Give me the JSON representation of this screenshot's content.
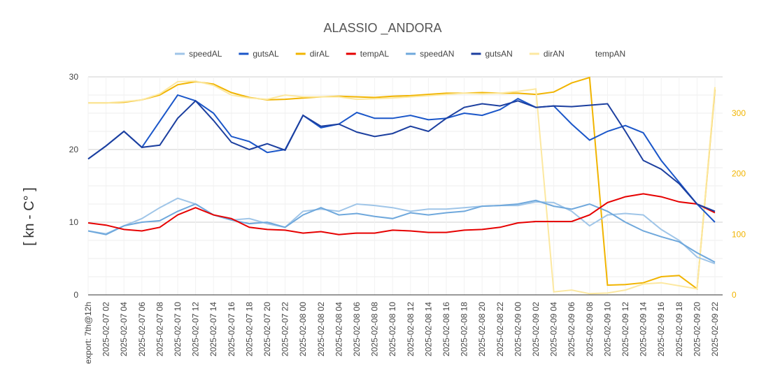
{
  "chart_data": {
    "type": "line",
    "title": "ALASSIO _ANDORA",
    "y_label": "[ kn - C° ]",
    "categories": [
      "export: 7th@12h",
      "2025-02-07  02",
      "2025-02-07  04",
      "2025-02-07  06",
      "2025-02-07  08",
      "2025-02-07  10",
      "2025-02-07  12",
      "2025-02-07  14",
      "2025-02-07  16",
      "2025-02-07  18",
      "2025-02-07  20",
      "2025-02-07  22",
      "2025-02-08  00",
      "2025-02-08  02",
      "2025-02-08  04",
      "2025-02-08  06",
      "2025-02-08  08",
      "2025-02-08  10",
      "2025-02-08  12",
      "2025-02-08  14",
      "2025-02-08  16",
      "2025-02-08  18",
      "2025-02-08  20",
      "2025-02-08  22",
      "2025-02-09  00",
      "2025-02-09  02",
      "2025-02-09  04",
      "2025-02-09  06",
      "2025-02-09  08",
      "2025-02-09  10",
      "2025-02-09  12",
      "2025-02-09  14",
      "2025-02-09  16",
      "2025-02-09  18",
      "2025-02-09  20",
      "2025-02-09  22"
    ],
    "series": [
      {
        "name": "speedAL",
        "color": "#9fc5e8",
        "values": [
          8.8,
          8.4,
          9.5,
          10.5,
          12,
          13.3,
          12.5,
          11,
          10.3,
          10.5,
          9.8,
          9.3,
          11.5,
          11.8,
          11.5,
          12.5,
          12.3,
          12,
          11.5,
          11.8,
          11.8,
          12,
          12.2,
          12.3,
          12.3,
          12.8,
          12.7,
          11.5,
          9.5,
          11,
          11.2,
          11,
          9,
          7.5,
          5.2,
          4.3
        ]
      },
      {
        "name": "gutsAL",
        "color": "#1a56c9",
        "values": [
          18.7,
          20.5,
          22.5,
          20.3,
          23.9,
          27.5,
          26.7,
          25,
          21.8,
          21.1,
          19.6,
          20,
          24.7,
          23,
          23.5,
          25.1,
          24.3,
          24.3,
          24.7,
          24.1,
          24.3,
          25,
          24.7,
          25.5,
          27,
          25.8,
          26,
          23.5,
          21.3,
          22.5,
          23.3,
          22.3,
          18.5,
          15.5,
          12.5,
          10
        ]
      },
      {
        "name": "dirAL",
        "color": "#f1b400",
        "axis": "y2",
        "values": [
          317,
          317,
          318,
          322,
          330,
          347,
          352,
          348,
          334,
          326,
          322,
          323,
          325,
          327,
          328,
          327,
          326,
          328,
          329,
          331,
          333,
          333,
          334,
          333,
          333,
          331,
          335,
          350,
          359,
          16,
          17,
          20,
          30,
          32,
          10,
          339
        ]
      },
      {
        "name": "tempAL",
        "color": "#e60000",
        "values": [
          9.9,
          9.6,
          9.0,
          8.8,
          9.3,
          11,
          12,
          11,
          10.5,
          9.3,
          9.0,
          8.9,
          8.5,
          8.7,
          8.3,
          8.5,
          8.5,
          8.9,
          8.8,
          8.6,
          8.6,
          8.9,
          9.0,
          9.3,
          9.9,
          10.1,
          10.1,
          10.1,
          11,
          12.7,
          13.5,
          13.9,
          13.5,
          12.8,
          12.5,
          11.3
        ]
      },
      {
        "name": "speedAN",
        "color": "#6fa8dc",
        "values": [
          8.8,
          8.3,
          9.5,
          10,
          10.2,
          11.5,
          12.5,
          11,
          10.3,
          9.8,
          10,
          9.3,
          11,
          12,
          11,
          11.2,
          10.8,
          10.5,
          11.3,
          11,
          11.3,
          11.5,
          12.2,
          12.3,
          12.5,
          13,
          12.2,
          11.8,
          12.5,
          11.5,
          10,
          8.8,
          8,
          7.3,
          5.8,
          4.5
        ]
      },
      {
        "name": "gutsAN",
        "color": "#1c3f9f",
        "values": [
          18.7,
          20.5,
          22.5,
          20.3,
          20.6,
          24.3,
          26.7,
          24,
          21,
          20,
          20.8,
          19.9,
          24.7,
          23.2,
          23.5,
          22.4,
          21.8,
          22.2,
          23.2,
          22.5,
          24.3,
          25.8,
          26.3,
          26,
          26.7,
          25.8,
          26,
          25.9,
          26.1,
          26.3,
          22.5,
          18.5,
          17.3,
          15.3,
          12.5,
          11.5
        ]
      },
      {
        "name": "dirAN",
        "color": "#fce8a0",
        "axis": "y2",
        "values": [
          317,
          317,
          319,
          322,
          332,
          352,
          353,
          346,
          330,
          325,
          323,
          330,
          327,
          327,
          327,
          323,
          324,
          325,
          327,
          329,
          331,
          333,
          332,
          333,
          336,
          340,
          5,
          8,
          2,
          3,
          8,
          18,
          20,
          15,
          10,
          343
        ]
      },
      {
        "name": "tempAN",
        "color": "#ffffff",
        "values": [
          null,
          null,
          null,
          null,
          null,
          null,
          null,
          null,
          null,
          null,
          null,
          null,
          null,
          null,
          null,
          null,
          null,
          null,
          null,
          null,
          null,
          null,
          null,
          null,
          null,
          null,
          null,
          null,
          null,
          null,
          null,
          null,
          null,
          null,
          null,
          null
        ]
      }
    ],
    "ylim": [
      0,
      30
    ],
    "yticks": [
      0,
      10,
      20,
      30
    ],
    "ygrid": [
      0,
      2.5,
      5,
      7.5,
      10,
      12.5,
      15,
      17.5,
      20,
      22.5,
      25,
      27.5,
      30
    ],
    "y2lim": [
      0,
      360
    ],
    "y2ticks": [
      0,
      100,
      200,
      300
    ],
    "y2_tick_color": "#f1b400",
    "grid": true,
    "legend": "top"
  }
}
